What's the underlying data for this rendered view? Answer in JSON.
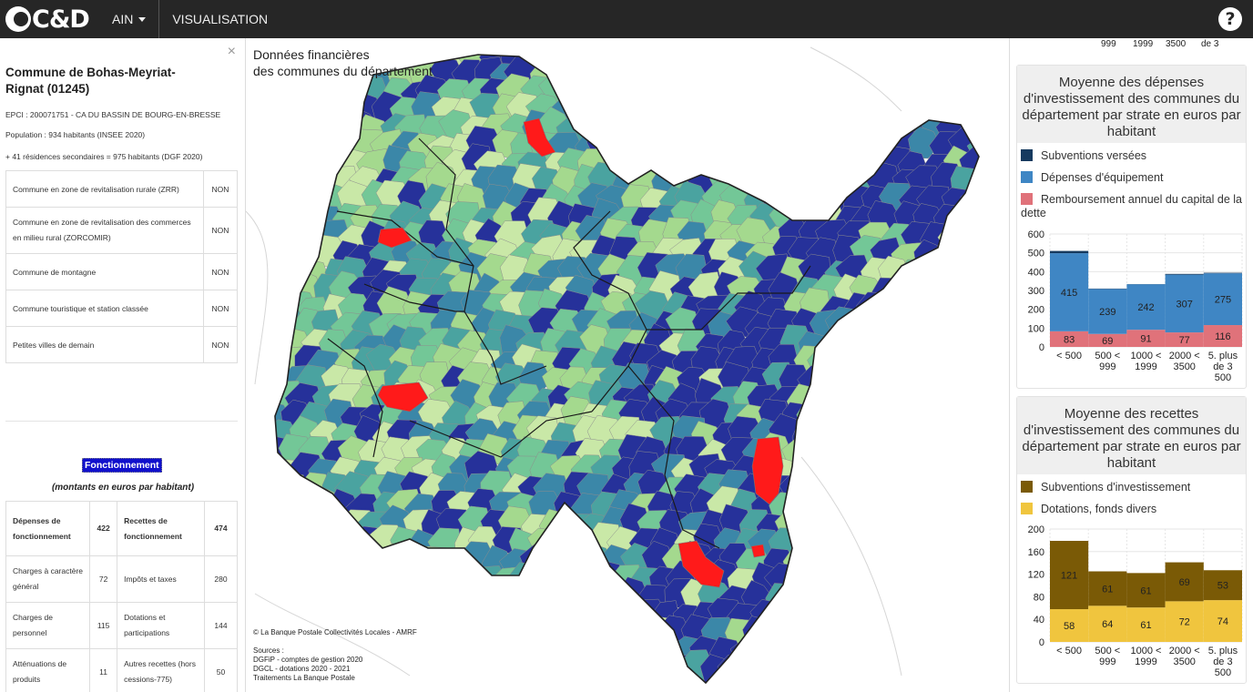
{
  "header": {
    "logo_text": "C&D",
    "nav": [
      {
        "label": "AIN"
      },
      {
        "label": "VISUALISATION"
      }
    ],
    "help_label": "?"
  },
  "commune": {
    "close_label": "×",
    "title": "Commune de Bohas-Meyriat-Rignat (01245)",
    "epci": "EPCI : 200071751 - CA DU BASSIN DE BOURG-EN-BRESSE",
    "population": "Population : 934 habitants (INSEE 2020)",
    "residences": "+ 41 résidences secondaires = 975 habitants (DGF 2020)",
    "flags": [
      {
        "label": "Commune en zone de revitalisation rurale (ZRR)",
        "value": "NON"
      },
      {
        "label": "Commune en zone de revitalisation des commerces en milieu rural (ZORCOMIR)",
        "value": "NON"
      },
      {
        "label": "Commune de montagne",
        "value": "NON"
      },
      {
        "label": "Commune touristique et station classée",
        "value": "NON"
      },
      {
        "label": "Petites villes de demain",
        "value": "NON"
      }
    ]
  },
  "fonctionnement": {
    "label": "Fonctionnement",
    "subtitle": "(montants en euros par habitant)",
    "head": {
      "dep_label": "Dépenses de fonctionnement",
      "dep_value": "422",
      "rec_label": "Recettes de fonctionnement",
      "rec_value": "474"
    },
    "rows": [
      {
        "dep_label": "Charges à caractère général",
        "dep_value": "72",
        "rec_label": "Impôts et taxes",
        "rec_value": "280"
      },
      {
        "dep_label": "Charges de personnel",
        "dep_value": "115",
        "rec_label": "Dotations et participations",
        "rec_value": "144"
      },
      {
        "dep_label": "Atténuations de produits",
        "dep_value": "11",
        "rec_label": "Autres recettes (hors cessions-775)",
        "rec_value": "50"
      }
    ]
  },
  "map": {
    "title_line1": "Données financières",
    "title_line2": "des communes du département",
    "credit": "© La Banque Postale Collectivités Locales - AMRF",
    "sources": [
      "Sources :",
      "DGFiP - comptes de gestion 2020",
      "DGCL - dotations 2020 - 2021",
      "Traitements La Banque Postale"
    ],
    "palette": [
      "#26319a",
      "#3b87a8",
      "#4aa3a0",
      "#73c797",
      "#a4d98e",
      "#c9e8a7"
    ],
    "highlight_color": "#ff1a1a"
  },
  "right_top_ticks": [
    "999",
    "1999",
    "3500",
    "de 3"
  ],
  "chart_data": [
    {
      "type": "bar",
      "stacked": true,
      "title": "Moyenne des dépenses d'investissement des communes du département par strate en euros par habitant",
      "categories": [
        "< 500",
        "500 < 999",
        "1000 < 1999",
        "2000 < 3500",
        "5. plus de 3 500"
      ],
      "series": [
        {
          "name": "Subventions versées",
          "color": "#163a5f",
          "values": [
            12,
            2,
            1,
            4,
            3
          ]
        },
        {
          "name": "Dépenses d'équipement",
          "color": "#3f86c4",
          "values": [
            415,
            239,
            242,
            307,
            275
          ]
        },
        {
          "name": "Remboursement annuel du capital de la dette",
          "color": "#e0727a",
          "values": [
            83,
            69,
            91,
            77,
            116
          ]
        }
      ],
      "data_labels": [
        {
          "series": 1,
          "values": [
            "415",
            "239",
            "242",
            "307",
            "275"
          ]
        },
        {
          "series": 2,
          "values": [
            "83",
            "69",
            "91",
            "77",
            "116"
          ]
        }
      ],
      "ylim": [
        0,
        600
      ],
      "yticks": [
        0,
        100,
        200,
        300,
        400,
        500,
        600
      ],
      "legend": "top"
    },
    {
      "type": "bar",
      "stacked": true,
      "title": "Moyenne des recettes d'investissement des communes du département par strate en euros par habitant",
      "categories": [
        "< 500",
        "500 < 999",
        "1000 < 1999",
        "2000 < 3500",
        "5. plus de 3 500"
      ],
      "series": [
        {
          "name": "Subventions d'investissement",
          "color": "#7a5a06",
          "values": [
            121,
            61,
            61,
            69,
            53
          ]
        },
        {
          "name": "Dotations, fonds divers",
          "color": "#f0c53e",
          "values": [
            58,
            64,
            61,
            72,
            74
          ]
        }
      ],
      "data_labels": [
        {
          "series": 0,
          "values": [
            "121",
            "61",
            "61",
            "69",
            "53"
          ]
        },
        {
          "series": 1,
          "values": [
            "58",
            "64",
            "61",
            "72",
            "74"
          ]
        }
      ],
      "ylim": [
        0,
        200
      ],
      "yticks": [
        0,
        40,
        80,
        120,
        160,
        200
      ],
      "legend": "top"
    }
  ]
}
